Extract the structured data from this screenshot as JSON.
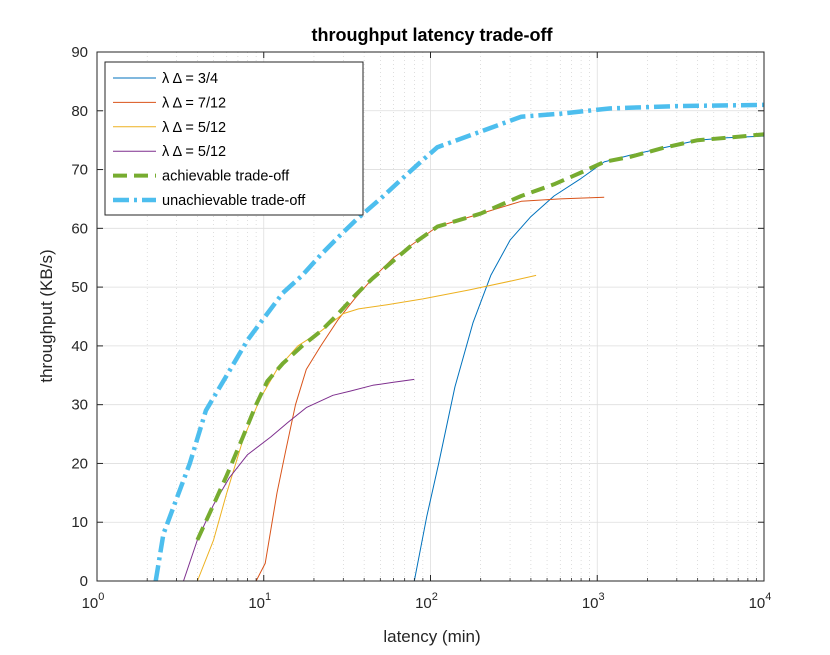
{
  "chart_data": {
    "type": "line",
    "title": "throughput latency trade-off",
    "xlabel": "latency (min)",
    "ylabel": "throughput (KB/s)",
    "xscale": "log",
    "xlim": [
      1,
      10000
    ],
    "ylim": [
      0,
      90
    ],
    "x_ticks": [
      {
        "value": 1,
        "base": "10",
        "exp": "0"
      },
      {
        "value": 10,
        "base": "10",
        "exp": "1"
      },
      {
        "value": 100,
        "base": "10",
        "exp": "2"
      },
      {
        "value": 1000,
        "base": "10",
        "exp": "3"
      },
      {
        "value": 10000,
        "base": "10",
        "exp": "4"
      }
    ],
    "y_ticks": [
      {
        "value": 0,
        "label": "0"
      },
      {
        "value": 10,
        "label": "10"
      },
      {
        "value": 20,
        "label": "20"
      },
      {
        "value": 30,
        "label": "30"
      },
      {
        "value": 40,
        "label": "40"
      },
      {
        "value": 50,
        "label": "50"
      },
      {
        "value": 60,
        "label": "60"
      },
      {
        "value": 70,
        "label": "70"
      },
      {
        "value": 80,
        "label": "80"
      },
      {
        "value": 90,
        "label": "90"
      }
    ],
    "grid": true,
    "minor_grid": true,
    "legend_position": "top-left",
    "series": [
      {
        "name": "λ Δ = 3/4",
        "color": "#0072BD",
        "width": 1,
        "dash": "",
        "points": [
          [
            80,
            0
          ],
          [
            95,
            11
          ],
          [
            112,
            20
          ],
          [
            140,
            33
          ],
          [
            180,
            44
          ],
          [
            230,
            52
          ],
          [
            300,
            58
          ],
          [
            400,
            62
          ],
          [
            550,
            65.5
          ],
          [
            800,
            68.5
          ],
          [
            1100,
            71.3
          ],
          [
            1600,
            72.5
          ],
          [
            2500,
            73.7
          ],
          [
            4000,
            75
          ],
          [
            6000,
            75.4
          ],
          [
            10000,
            75.7
          ]
        ]
      },
      {
        "name": "λ Δ = 7/12",
        "color": "#D95319",
        "width": 1,
        "dash": "",
        "points": [
          [
            9,
            0
          ],
          [
            10.2,
            3
          ],
          [
            12,
            15
          ],
          [
            13.5,
            22
          ],
          [
            15.5,
            30
          ],
          [
            18,
            36
          ],
          [
            22,
            40
          ],
          [
            28,
            44.5
          ],
          [
            35,
            48
          ],
          [
            45,
            51.5
          ],
          [
            60,
            55
          ],
          [
            80,
            57.5
          ],
          [
            110,
            60.3
          ],
          [
            200,
            62.5
          ],
          [
            350,
            64.6
          ],
          [
            600,
            65
          ],
          [
            1100,
            65.3
          ]
        ]
      },
      {
        "name": "λ Δ = 5/12",
        "color": "#EDB120",
        "width": 1,
        "dash": "",
        "points": [
          [
            4,
            0
          ],
          [
            5,
            7
          ],
          [
            6,
            15
          ],
          [
            7.5,
            24
          ],
          [
            9.5,
            31
          ],
          [
            12,
            36
          ],
          [
            16,
            40
          ],
          [
            22,
            42.5
          ],
          [
            30,
            45.5
          ],
          [
            37,
            46.3
          ],
          [
            55,
            47
          ],
          [
            90,
            48
          ],
          [
            170,
            49.5
          ],
          [
            300,
            51
          ],
          [
            430,
            52
          ]
        ]
      },
      {
        "name": "λ Δ = 5/12",
        "color": "#7E2F8E",
        "width": 1,
        "dash": "",
        "points": [
          [
            3.3,
            0
          ],
          [
            4,
            7
          ],
          [
            5,
            13
          ],
          [
            6.2,
            17.5
          ],
          [
            8,
            21.5
          ],
          [
            11,
            24.5
          ],
          [
            14,
            27
          ],
          [
            18,
            29.5
          ],
          [
            26,
            31.6
          ],
          [
            33,
            32.3
          ],
          [
            45,
            33.3
          ],
          [
            60,
            33.8
          ],
          [
            80,
            34.3
          ]
        ]
      },
      {
        "name": "achievable trade-off",
        "color": "#77AC30",
        "width": 4,
        "dash": "14,7",
        "points": [
          [
            4,
            7
          ],
          [
            5,
            13
          ],
          [
            6,
            18
          ],
          [
            7.5,
            24.5
          ],
          [
            9,
            30
          ],
          [
            10.5,
            34
          ],
          [
            13,
            37
          ],
          [
            17,
            40
          ],
          [
            22,
            42.5
          ],
          [
            28,
            45.5
          ],
          [
            35,
            48.5
          ],
          [
            45,
            51.5
          ],
          [
            60,
            54.5
          ],
          [
            80,
            57.5
          ],
          [
            110,
            60.3
          ],
          [
            200,
            62.5
          ],
          [
            350,
            65.5
          ],
          [
            550,
            67.5
          ],
          [
            800,
            69.5
          ],
          [
            1100,
            71.3
          ],
          [
            1600,
            72.2
          ],
          [
            2500,
            73.7
          ],
          [
            4000,
            75
          ],
          [
            6000,
            75.4
          ],
          [
            10000,
            76
          ]
        ]
      },
      {
        "name": "unachievable trade-off",
        "color": "#4DBEEE",
        "width": 4.5,
        "dash": "16,5,3,5",
        "points": [
          [
            2.25,
            0
          ],
          [
            2.5,
            8
          ],
          [
            3,
            14
          ],
          [
            3.6,
            20
          ],
          [
            4.5,
            29
          ],
          [
            6,
            35
          ],
          [
            8,
            41
          ],
          [
            10.5,
            45.5
          ],
          [
            13,
            49
          ],
          [
            17,
            52
          ],
          [
            22,
            55.5
          ],
          [
            28,
            58.5
          ],
          [
            36,
            61.5
          ],
          [
            50,
            65
          ],
          [
            65,
            68
          ],
          [
            85,
            71
          ],
          [
            110,
            73.8
          ],
          [
            180,
            76
          ],
          [
            350,
            79
          ],
          [
            600,
            79.5
          ],
          [
            1200,
            80.4
          ],
          [
            3000,
            80.8
          ],
          [
            10000,
            81
          ]
        ]
      }
    ]
  }
}
